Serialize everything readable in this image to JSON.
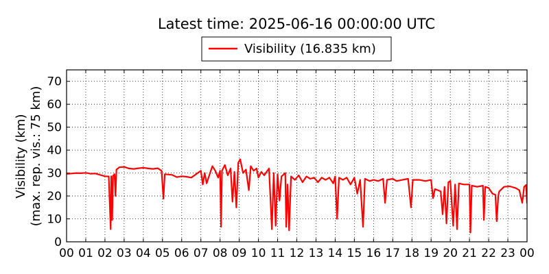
{
  "chart_data": {
    "type": "line",
    "title": "Latest time: 2025-06-16 00:00:00 UTC",
    "xlabel": "",
    "ylabel_lines": [
      "Visibility (km)",
      "(max. rep. vis.: 75 km)"
    ],
    "xlim": [
      0,
      24
    ],
    "ylim": [
      0,
      75
    ],
    "grid": true,
    "legend_position": "top-center",
    "x_tick_labels": [
      "00",
      "01",
      "02",
      "03",
      "04",
      "05",
      "06",
      "07",
      "08",
      "09",
      "10",
      "11",
      "12",
      "13",
      "14",
      "15",
      "16",
      "17",
      "18",
      "19",
      "20",
      "21",
      "22",
      "23",
      "00"
    ],
    "y_ticks": [
      0,
      10,
      20,
      30,
      40,
      50,
      60,
      70
    ],
    "series": [
      {
        "name": "Visibility (16.835 km)",
        "color": "#ff0000",
        "x_unit": "hour (UTC)",
        "y_unit": "km",
        "points": [
          [
            0.0,
            29.6
          ],
          [
            0.25,
            29.8
          ],
          [
            0.5,
            30.0
          ],
          [
            0.75,
            29.9
          ],
          [
            1.0,
            30.1
          ],
          [
            1.25,
            29.7
          ],
          [
            1.5,
            29.8
          ],
          [
            1.75,
            29.2
          ],
          [
            2.0,
            28.6
          ],
          [
            2.2,
            28.5
          ],
          [
            2.3,
            5.5
          ],
          [
            2.33,
            28.6
          ],
          [
            2.38,
            9.5
          ],
          [
            2.42,
            28.8
          ],
          [
            2.5,
            29.5
          ],
          [
            2.55,
            20.0
          ],
          [
            2.6,
            31.5
          ],
          [
            2.75,
            32.5
          ],
          [
            3.0,
            32.7
          ],
          [
            3.25,
            32.0
          ],
          [
            3.5,
            31.8
          ],
          [
            3.75,
            32.1
          ],
          [
            4.0,
            32.3
          ],
          [
            4.25,
            32.0
          ],
          [
            4.5,
            31.8
          ],
          [
            4.75,
            32.1
          ],
          [
            4.95,
            31.0
          ],
          [
            5.05,
            18.8
          ],
          [
            5.12,
            29.5
          ],
          [
            5.5,
            29.2
          ],
          [
            5.75,
            28.2
          ],
          [
            6.0,
            28.6
          ],
          [
            6.25,
            28.4
          ],
          [
            6.5,
            28.0
          ],
          [
            6.75,
            29.5
          ],
          [
            7.0,
            31.0
          ],
          [
            7.1,
            25.0
          ],
          [
            7.2,
            30.0
          ],
          [
            7.3,
            25.5
          ],
          [
            7.5,
            30.5
          ],
          [
            7.6,
            33.0
          ],
          [
            7.75,
            31.0
          ],
          [
            7.9,
            28.0
          ],
          [
            8.0,
            31.0
          ],
          [
            8.05,
            6.5
          ],
          [
            8.1,
            31.0
          ],
          [
            8.25,
            33.5
          ],
          [
            8.4,
            29.0
          ],
          [
            8.55,
            32.0
          ],
          [
            8.65,
            17.5
          ],
          [
            8.75,
            30.5
          ],
          [
            8.85,
            15.0
          ],
          [
            8.95,
            34.5
          ],
          [
            9.05,
            36.0
          ],
          [
            9.2,
            30.0
          ],
          [
            9.35,
            31.5
          ],
          [
            9.5,
            22.5
          ],
          [
            9.6,
            33.0
          ],
          [
            9.75,
            31.0
          ],
          [
            9.9,
            32.0
          ],
          [
            10.0,
            28.0
          ],
          [
            10.15,
            30.5
          ],
          [
            10.3,
            29.0
          ],
          [
            10.55,
            32.0
          ],
          [
            10.7,
            5.5
          ],
          [
            10.8,
            30.0
          ],
          [
            10.9,
            7.0
          ],
          [
            11.0,
            29.5
          ],
          [
            11.1,
            18.0
          ],
          [
            11.2,
            28.5
          ],
          [
            11.4,
            30.0
          ],
          [
            11.45,
            6.5
          ],
          [
            11.52,
            25.0
          ],
          [
            11.6,
            5.0
          ],
          [
            11.7,
            28.5
          ],
          [
            11.9,
            27.0
          ],
          [
            12.1,
            29.0
          ],
          [
            12.3,
            26.0
          ],
          [
            12.5,
            28.5
          ],
          [
            12.7,
            27.5
          ],
          [
            12.9,
            28.0
          ],
          [
            13.1,
            26.0
          ],
          [
            13.3,
            28.0
          ],
          [
            13.5,
            27.0
          ],
          [
            13.7,
            28.0
          ],
          [
            13.9,
            25.5
          ],
          [
            14.0,
            28.5
          ],
          [
            14.1,
            10.0
          ],
          [
            14.2,
            28.0
          ],
          [
            14.4,
            27.0
          ],
          [
            14.6,
            28.0
          ],
          [
            14.8,
            25.0
          ],
          [
            15.0,
            28.0
          ],
          [
            15.15,
            21.0
          ],
          [
            15.3,
            27.0
          ],
          [
            15.45,
            6.5
          ],
          [
            15.55,
            27.5
          ],
          [
            15.8,
            26.5
          ],
          [
            16.0,
            27.0
          ],
          [
            16.25,
            26.5
          ],
          [
            16.5,
            27.5
          ],
          [
            16.6,
            17.0
          ],
          [
            16.7,
            27.0
          ],
          [
            17.0,
            27.5
          ],
          [
            17.2,
            26.5
          ],
          [
            17.5,
            27.0
          ],
          [
            17.8,
            27.5
          ],
          [
            17.95,
            15.0
          ],
          [
            18.05,
            27.0
          ],
          [
            18.4,
            27.0
          ],
          [
            18.7,
            26.5
          ],
          [
            19.0,
            27.0
          ],
          [
            19.1,
            19.0
          ],
          [
            19.2,
            23.0
          ],
          [
            19.5,
            22.0
          ],
          [
            19.6,
            12.0
          ],
          [
            19.7,
            24.0
          ],
          [
            19.8,
            8.0
          ],
          [
            19.9,
            26.0
          ],
          [
            20.0,
            26.5
          ],
          [
            20.15,
            7.0
          ],
          [
            20.25,
            25.0
          ],
          [
            20.35,
            5.5
          ],
          [
            20.45,
            25.5
          ],
          [
            20.7,
            25.0
          ],
          [
            21.0,
            25.0
          ],
          [
            21.05,
            4.0
          ],
          [
            21.12,
            24.5
          ],
          [
            21.4,
            24.0
          ],
          [
            21.7,
            24.5
          ],
          [
            21.75,
            9.5
          ],
          [
            21.82,
            24.0
          ],
          [
            22.0,
            23.5
          ],
          [
            22.2,
            21.0
          ],
          [
            22.35,
            20.5
          ],
          [
            22.42,
            9.0
          ],
          [
            22.5,
            20.0
          ],
          [
            22.55,
            22.0
          ],
          [
            22.8,
            24.0
          ],
          [
            23.1,
            24.2
          ],
          [
            23.4,
            23.5
          ],
          [
            23.6,
            22.5
          ],
          [
            23.75,
            17.0
          ],
          [
            23.85,
            24.0
          ],
          [
            23.95,
            24.8
          ],
          [
            24.0,
            16.8
          ]
        ]
      }
    ]
  }
}
